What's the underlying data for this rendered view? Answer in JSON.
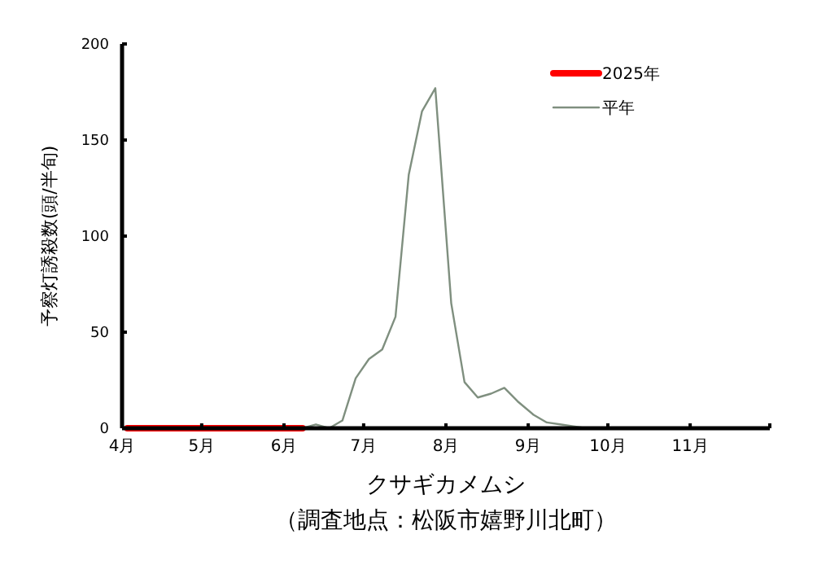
{
  "chart_data": {
    "type": "line",
    "xlabel": "クサギカメムシ",
    "ylabel": "予察灯誘殺数(頭/半旬)",
    "annotations": [
      "（調査地点：松阪市嬉野川北町）"
    ],
    "xlim": [
      "--04-01",
      "--12-01"
    ],
    "xticks": [
      {
        "value": "--04-01",
        "label": "4月"
      },
      {
        "value": "--05-01",
        "label": "5月"
      },
      {
        "value": "--06-01",
        "label": "6月"
      },
      {
        "value": "--07-01",
        "label": "7月"
      },
      {
        "value": "--08-01",
        "label": "8月"
      },
      {
        "value": "--09-01",
        "label": "9月"
      },
      {
        "value": "--10-01",
        "label": "10月"
      },
      {
        "value": "--11-01",
        "label": "11月"
      },
      {
        "value": "--12-01",
        "label": null
      }
    ],
    "ylim": [
      0,
      200
    ],
    "yticks": [
      0,
      50,
      100,
      150,
      200
    ],
    "grid": false,
    "legend": "top right",
    "marker": "none",
    "line_style": "solid",
    "series": [
      {
        "name": "2025年",
        "color": "#ff0000",
        "x": [
          "--04-03",
          "--04-08",
          "--04-13",
          "--04-18",
          "--04-23",
          "--04-28",
          "--05-03",
          "--05-08",
          "--05-13",
          "--05-18",
          "--05-23",
          "--05-28",
          "--06-03",
          "--06-08"
        ],
        "values": [
          0,
          0,
          0,
          0,
          0,
          0,
          0,
          0,
          0,
          0,
          0,
          0,
          0,
          0
        ]
      },
      {
        "name": "平年",
        "color": "#7f8f7f",
        "x": [
          "--04-03",
          "--04-08",
          "--04-13",
          "--04-18",
          "--04-23",
          "--04-28",
          "--05-03",
          "--05-08",
          "--05-13",
          "--05-18",
          "--05-23",
          "--05-28",
          "--06-03",
          "--06-08",
          "--06-13",
          "--06-18",
          "--06-23",
          "--06-28",
          "--07-03",
          "--07-08",
          "--07-13",
          "--07-18",
          "--07-23",
          "--07-28",
          "--08-03",
          "--08-08",
          "--08-13",
          "--08-18",
          "--08-23",
          "--08-28",
          "--09-03",
          "--09-08",
          "--09-13",
          "--09-18",
          "--09-23",
          "--09-28",
          "--10-03",
          "--10-08",
          "--10-13",
          "--10-18",
          "--10-23",
          "--10-28",
          "--11-03",
          "--11-08",
          "--11-13",
          "--11-18",
          "--11-23",
          "--11-28"
        ],
        "values": [
          0,
          0,
          0,
          0,
          0,
          0,
          0,
          0,
          0,
          0,
          0,
          0,
          0,
          0,
          2,
          0,
          4,
          26,
          36,
          41,
          58,
          132,
          165,
          177,
          65,
          24,
          16,
          18,
          21,
          14,
          7,
          3,
          2,
          1,
          0,
          0,
          0,
          0,
          0,
          0,
          0,
          0,
          0,
          0,
          0,
          0,
          0,
          0
        ]
      }
    ]
  }
}
